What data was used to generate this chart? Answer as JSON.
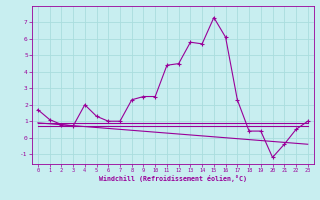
{
  "title": "",
  "xlabel": "Windchill (Refroidissement éolien,°C)",
  "bg_color": "#c8eef0",
  "grid_color": "#aadddd",
  "line_color": "#990099",
  "spine_color": "#990099",
  "xlim": [
    -0.5,
    23.5
  ],
  "ylim": [
    -1.6,
    8.0
  ],
  "xticks": [
    0,
    1,
    2,
    3,
    4,
    5,
    6,
    7,
    8,
    9,
    10,
    11,
    12,
    13,
    14,
    15,
    16,
    17,
    18,
    19,
    20,
    21,
    22,
    23
  ],
  "yticks": [
    -1,
    0,
    1,
    2,
    3,
    4,
    5,
    6,
    7
  ],
  "line1_x": [
    0,
    1,
    2,
    3,
    4,
    5,
    6,
    7,
    8,
    9,
    10,
    11,
    12,
    13,
    14,
    15,
    16,
    17,
    18,
    19,
    20,
    21,
    22,
    23
  ],
  "line1_y": [
    1.7,
    1.1,
    0.8,
    0.7,
    2.0,
    1.3,
    1.0,
    1.0,
    2.3,
    2.5,
    2.5,
    4.4,
    4.5,
    5.8,
    5.7,
    7.3,
    6.1,
    2.3,
    0.4,
    0.4,
    -1.2,
    -0.4,
    0.5,
    1.0
  ],
  "line2_x": [
    0,
    23
  ],
  "line2_y": [
    0.9,
    0.9
  ],
  "line3_x": [
    0,
    23
  ],
  "line3_y": [
    0.9,
    -0.4
  ],
  "line4_x": [
    0,
    23
  ],
  "line4_y": [
    0.7,
    0.7
  ]
}
